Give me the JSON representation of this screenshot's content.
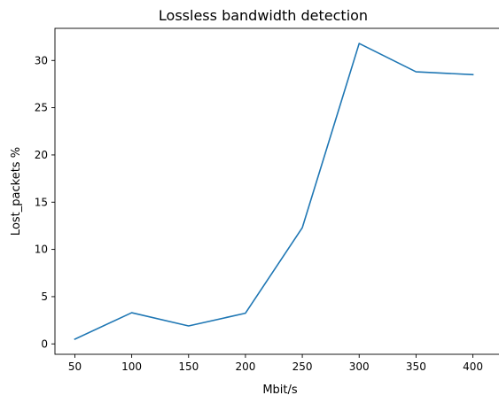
{
  "chart_data": {
    "type": "line",
    "title": "Lossless bandwidth detection",
    "xlabel": "Mbit/s",
    "ylabel": "Lost_packets %",
    "x": [
      50,
      100,
      150,
      200,
      250,
      300,
      350,
      400
    ],
    "series": [
      {
        "values": [
          0.5,
          3.3,
          1.9,
          3.25,
          12.3,
          31.8,
          28.8,
          28.5
        ],
        "color": "#1f77b4"
      }
    ],
    "xticks": [
      50,
      100,
      150,
      200,
      250,
      300,
      350,
      400
    ],
    "yticks": [
      0,
      5,
      10,
      15,
      20,
      25,
      30
    ],
    "xlim": [
      32.5,
      417.5
    ],
    "ylim": [
      -1.1,
      33.4
    ],
    "grid": false,
    "legend": "none"
  }
}
